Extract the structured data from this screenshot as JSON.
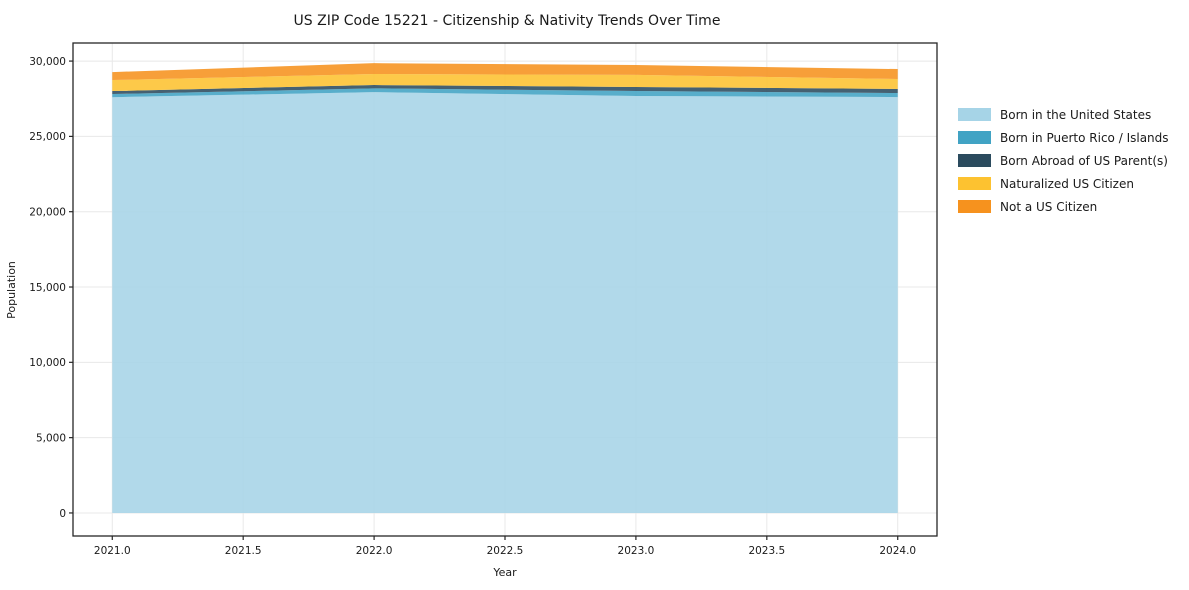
{
  "chart_data": {
    "type": "area",
    "stacked": true,
    "title": "US ZIP Code 15221 - Citizenship & Nativity Trends Over Time",
    "xlabel": "Year",
    "ylabel": "Population",
    "x": [
      2021,
      2022,
      2023,
      2024
    ],
    "series": [
      {
        "name": "Born in the United States",
        "color": "#A6D4E7",
        "values": [
          27600,
          27940,
          27680,
          27610
        ]
      },
      {
        "name": "Born in Puerto Rico / Islands",
        "color": "#41A3C4",
        "values": [
          210,
          250,
          330,
          270
        ]
      },
      {
        "name": "Born Abroad of US Parent(s)",
        "color": "#2B4B5E",
        "values": [
          200,
          220,
          270,
          270
        ]
      },
      {
        "name": "Naturalized US Citizen",
        "color": "#FDC230",
        "values": [
          730,
          730,
          800,
          660
        ]
      },
      {
        "name": "Not a US Citizen",
        "color": "#F6921E",
        "values": [
          530,
          720,
          660,
          660
        ]
      }
    ],
    "totals": [
      29270,
      29860,
      29740,
      29470
    ],
    "xticks": {
      "values": [
        2021.0,
        2021.5,
        2022.0,
        2022.5,
        2023.0,
        2023.5,
        2024.0
      ],
      "labels": [
        "2021.0",
        "2021.5",
        "2022.0",
        "2022.5",
        "2023.0",
        "2023.5",
        "2024.0"
      ]
    },
    "yticks": {
      "values": [
        0,
        5000,
        10000,
        15000,
        20000,
        25000,
        30000
      ],
      "labels": [
        "0",
        "5,000",
        "10,000",
        "15,000",
        "20,000",
        "25,000",
        "30,000"
      ]
    },
    "xlim": [
      2020.85,
      2024.15
    ],
    "ylim": [
      -1530,
      31200
    ],
    "grid": true,
    "grid_color": "#e8e8e8",
    "spine_color": "#262626",
    "text_color": "#1a1a1a",
    "fill_opacity": 0.88,
    "legend_position": "outside-right"
  }
}
